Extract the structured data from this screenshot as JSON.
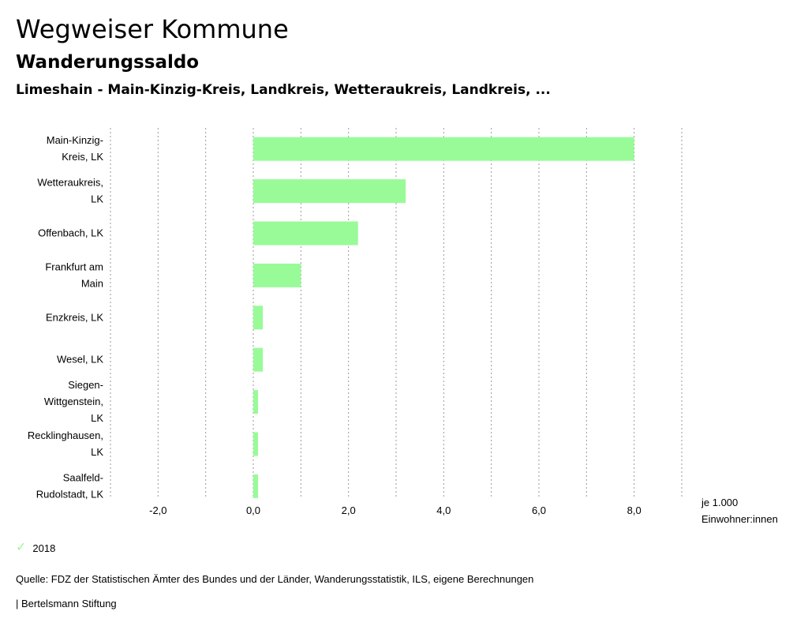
{
  "header": {
    "title": "Wegweiser Kommune",
    "subtitle": "Wanderungssaldo",
    "region": "Limeshain - Main-Kinzig-Kreis, Landkreis, Wetteraukreis, Landkreis, ..."
  },
  "chart_data": {
    "type": "bar",
    "orientation": "horizontal",
    "categories": [
      [
        "Main-Kinzig-",
        "Kreis, LK"
      ],
      [
        "Wetteraukreis,",
        "LK"
      ],
      [
        "Offenbach, LK"
      ],
      [
        "Frankfurt am",
        "Main"
      ],
      [
        "Enzkreis, LK"
      ],
      [
        "Wesel, LK"
      ],
      [
        "Siegen-",
        "Wittgenstein,",
        "LK"
      ],
      [
        "Recklinghausen,",
        "LK"
      ],
      [
        "Saalfeld-",
        "Rudolstadt, LK"
      ]
    ],
    "series": [
      {
        "name": "2018",
        "color": "#98FB98",
        "values": [
          8.0,
          3.2,
          2.2,
          1.0,
          0.2,
          0.2,
          0.1,
          0.1,
          0.1
        ]
      }
    ],
    "xlim": [
      -3.0,
      9.0
    ],
    "ticks": [
      -2.0,
      0.0,
      2.0,
      4.0,
      6.0,
      8.0
    ],
    "tick_labels": [
      "-2,0",
      "0,0",
      "2,0",
      "4,0",
      "6,0",
      "8,0"
    ],
    "gridlines": [
      -3.0,
      -2.0,
      -1.0,
      0.0,
      1.0,
      2.0,
      3.0,
      4.0,
      5.0,
      6.0,
      7.0,
      8.0,
      9.0
    ],
    "unit_label": [
      "je 1.000",
      "Einwohner:innen"
    ]
  },
  "legend": {
    "label": "2018",
    "icon": "check-icon",
    "color": "#98FB98"
  },
  "footer": {
    "source": "Quelle: FDZ der Statistischen Ämter des Bundes und der Länder, Wanderungsstatistik, ILS, eigene Berechnungen",
    "credit": "| Bertelsmann Stiftung"
  }
}
